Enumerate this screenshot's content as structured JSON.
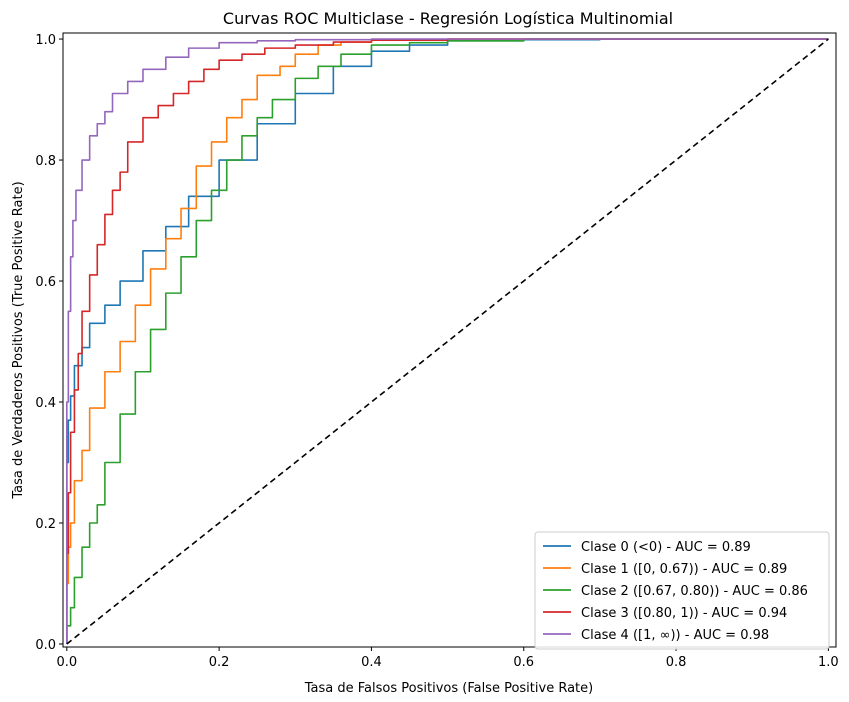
{
  "chart_data": {
    "type": "line",
    "title": "Curvas ROC Multiclase - Regresión Logística Multinomial",
    "xlabel": "Tasa de Falsos Positivos (False Positive Rate)",
    "ylabel": "Tasa de Verdaderos Positivos (True Positive Rate)",
    "xlim": [
      -0.005,
      1.01
    ],
    "ylim": [
      -0.005,
      1.01
    ],
    "xticks": [
      "0.0",
      "0.2",
      "0.4",
      "0.6",
      "0.8",
      "1.0"
    ],
    "yticks": [
      "0.0",
      "0.2",
      "0.4",
      "0.6",
      "0.8",
      "1.0"
    ],
    "grid": false,
    "legend_position": "lower-right",
    "diagonal": {
      "x": [
        0,
        1
      ],
      "y": [
        0,
        1
      ],
      "color": "#000000",
      "style": "dashed"
    },
    "series": [
      {
        "name": "Clase 0 (<0) - AUC = 0.89",
        "color": "#1f77b4",
        "x": [
          0,
          0.002,
          0.005,
          0.01,
          0.02,
          0.03,
          0.05,
          0.07,
          0.1,
          0.13,
          0.16,
          0.2,
          0.25,
          0.3,
          0.35,
          0.4,
          0.45,
          0.5,
          0.6,
          0.7,
          0.8,
          1.0
        ],
        "y": [
          0,
          0.3,
          0.37,
          0.41,
          0.46,
          0.49,
          0.53,
          0.56,
          0.6,
          0.65,
          0.69,
          0.74,
          0.8,
          0.86,
          0.91,
          0.955,
          0.98,
          0.99,
          0.997,
          0.999,
          1.0,
          1.0
        ]
      },
      {
        "name": "Clase 1 ([0, 0.67)) - AUC = 0.89",
        "color": "#ff7f0e",
        "x": [
          0,
          0.002,
          0.005,
          0.01,
          0.02,
          0.03,
          0.05,
          0.07,
          0.09,
          0.11,
          0.13,
          0.15,
          0.17,
          0.19,
          0.21,
          0.23,
          0.25,
          0.28,
          0.3,
          0.33,
          0.36,
          0.4,
          0.45,
          0.5,
          0.6,
          0.8,
          1.0
        ],
        "y": [
          0,
          0.1,
          0.16,
          0.2,
          0.27,
          0.32,
          0.39,
          0.45,
          0.5,
          0.56,
          0.62,
          0.67,
          0.72,
          0.79,
          0.83,
          0.87,
          0.9,
          0.94,
          0.955,
          0.975,
          0.99,
          0.995,
          0.998,
          0.999,
          1.0,
          1.0,
          1.0
        ]
      },
      {
        "name": "Clase 2 ([0.67, 0.80)) - AUC = 0.86",
        "color": "#2ca02c",
        "x": [
          0,
          0.005,
          0.01,
          0.02,
          0.03,
          0.04,
          0.05,
          0.07,
          0.09,
          0.11,
          0.13,
          0.15,
          0.17,
          0.19,
          0.21,
          0.23,
          0.25,
          0.27,
          0.3,
          0.33,
          0.36,
          0.4,
          0.45,
          0.5,
          0.6,
          0.7,
          0.8,
          1.0
        ],
        "y": [
          0,
          0.03,
          0.06,
          0.11,
          0.16,
          0.2,
          0.23,
          0.3,
          0.38,
          0.45,
          0.52,
          0.58,
          0.64,
          0.7,
          0.75,
          0.8,
          0.84,
          0.87,
          0.9,
          0.935,
          0.955,
          0.975,
          0.99,
          0.994,
          0.997,
          1.0,
          1.0,
          1.0
        ]
      },
      {
        "name": "Clase 3 ([0.80, 1)) - AUC = 0.94",
        "color": "#d62728",
        "x": [
          0,
          0.002,
          0.005,
          0.01,
          0.015,
          0.02,
          0.03,
          0.04,
          0.05,
          0.06,
          0.07,
          0.08,
          0.1,
          0.12,
          0.14,
          0.16,
          0.18,
          0.2,
          0.23,
          0.26,
          0.3,
          0.35,
          0.4,
          0.5,
          0.6,
          0.8,
          1.0
        ],
        "y": [
          0,
          0.15,
          0.25,
          0.35,
          0.42,
          0.48,
          0.55,
          0.61,
          0.66,
          0.71,
          0.75,
          0.78,
          0.83,
          0.87,
          0.89,
          0.91,
          0.93,
          0.95,
          0.965,
          0.975,
          0.985,
          0.99,
          0.995,
          0.998,
          1.0,
          1.0,
          1.0
        ]
      },
      {
        "name": "Clase 4 ([1, ∞)) - AUC = 0.98",
        "color": "#9467bd",
        "x": [
          0,
          0.002,
          0.005,
          0.008,
          0.012,
          0.02,
          0.03,
          0.04,
          0.05,
          0.06,
          0.08,
          0.1,
          0.13,
          0.16,
          0.2,
          0.25,
          0.3,
          0.4,
          0.5,
          0.7,
          1.0
        ],
        "y": [
          0,
          0.4,
          0.55,
          0.64,
          0.7,
          0.75,
          0.8,
          0.84,
          0.86,
          0.88,
          0.91,
          0.93,
          0.95,
          0.97,
          0.985,
          0.994,
          0.997,
          0.999,
          1.0,
          1.0,
          1.0
        ]
      }
    ]
  }
}
